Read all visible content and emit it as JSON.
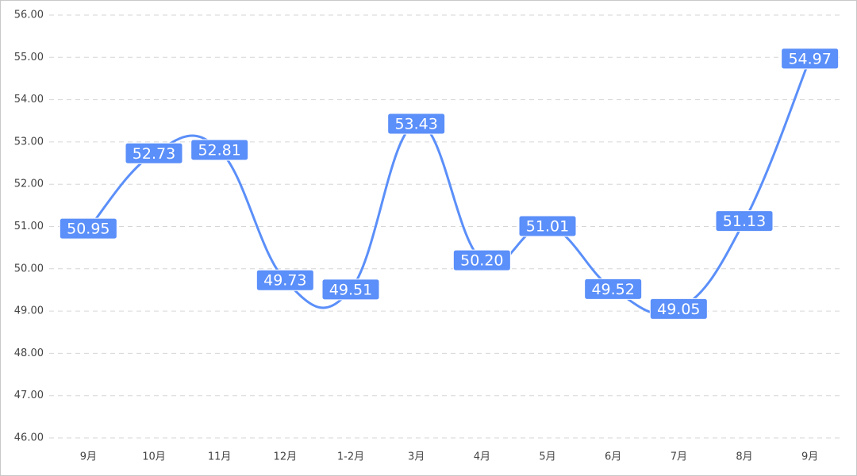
{
  "chart_data": {
    "type": "line",
    "categories": [
      "9月",
      "10月",
      "11月",
      "12月",
      "1-2月",
      "3月",
      "4月",
      "5月",
      "6月",
      "7月",
      "8月",
      "9月"
    ],
    "values": [
      50.95,
      52.73,
      52.81,
      49.73,
      49.51,
      53.43,
      50.2,
      51.01,
      49.52,
      49.05,
      51.13,
      54.97
    ],
    "value_labels": [
      "50.95",
      "52.73",
      "52.81",
      "49.73",
      "49.51",
      "53.43",
      "50.20",
      "51.01",
      "49.52",
      "49.05",
      "51.13",
      "54.97"
    ],
    "color": "#5b8ff9",
    "ylim": [
      46,
      56
    ],
    "yticks": [
      {
        "value": 46,
        "label": "46.00"
      },
      {
        "value": 47,
        "label": "47.00"
      },
      {
        "value": 48,
        "label": "48.00"
      },
      {
        "value": 49,
        "label": "49.00"
      },
      {
        "value": 50,
        "label": "50.00"
      },
      {
        "value": 51,
        "label": "51.00"
      },
      {
        "value": 52,
        "label": "52.00"
      },
      {
        "value": 53,
        "label": "53.00"
      },
      {
        "value": 54,
        "label": "54.00"
      },
      {
        "value": 55,
        "label": "55.00"
      },
      {
        "value": 56,
        "label": "56.00"
      }
    ],
    "grid": true
  }
}
